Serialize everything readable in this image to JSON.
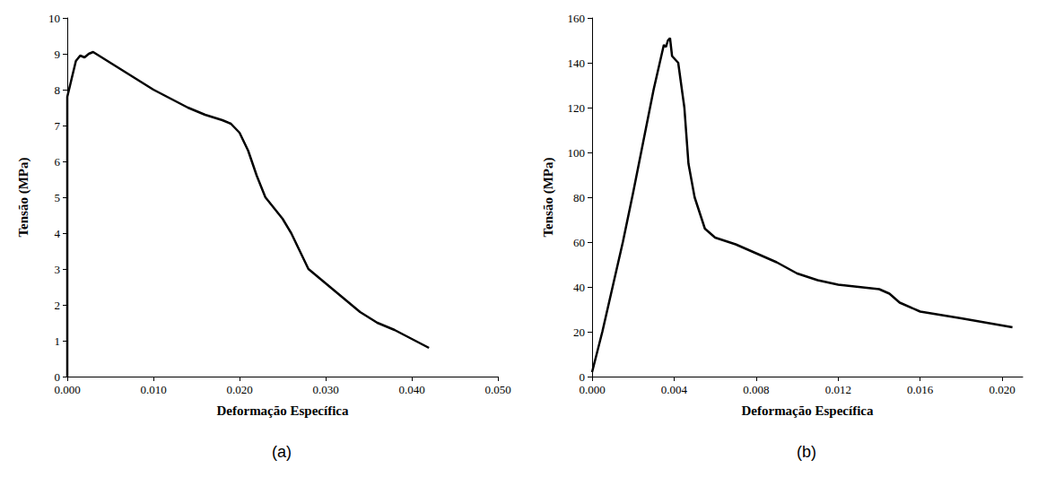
{
  "chart_data": [
    {
      "type": "line",
      "title": "(a)",
      "x_label": "Deformação Específica",
      "y_label": "Tensão (MPa)",
      "color": "#000000",
      "grid": false,
      "x": [
        0,
        0,
        0.0005,
        0.001,
        0.0015,
        0.002,
        0.0025,
        0.003,
        0.004,
        0.006,
        0.008,
        0.01,
        0.012,
        0.014,
        0.016,
        0.018,
        0.019,
        0.02,
        0.021,
        0.022,
        0.023,
        0.025,
        0.026,
        0.027,
        0.028,
        0.03,
        0.032,
        0.034,
        0.036,
        0.038,
        0.04,
        0.042
      ],
      "values": [
        0,
        7.8,
        8.3,
        8.8,
        8.95,
        8.9,
        9.0,
        9.05,
        8.9,
        8.6,
        8.3,
        8.0,
        7.75,
        7.5,
        7.3,
        7.15,
        7.05,
        6.8,
        6.3,
        5.6,
        5.0,
        4.4,
        4.0,
        3.5,
        3.0,
        2.6,
        2.2,
        1.8,
        1.5,
        1.3,
        1.05,
        0.8
      ],
      "xlim": [
        0,
        0.05
      ],
      "xticks": [
        {
          "value": 0,
          "label": "0.000"
        },
        {
          "value": 0.01,
          "label": "0.010"
        },
        {
          "value": 0.02,
          "label": "0.020"
        },
        {
          "value": 0.03,
          "label": "0.030"
        },
        {
          "value": 0.04,
          "label": "0.040"
        },
        {
          "value": 0.05,
          "label": "0.050"
        }
      ],
      "ylim": [
        0,
        10
      ],
      "yticks": [
        0,
        1,
        2,
        3,
        4,
        5,
        6,
        7,
        8,
        9,
        10
      ]
    },
    {
      "type": "line",
      "title": "(b)",
      "x_label": "Deformação Específica",
      "y_label": "Tensão (MPa)",
      "color": "#000000",
      "grid": false,
      "x": [
        0,
        0.0005,
        0.001,
        0.0015,
        0.002,
        0.0025,
        0.003,
        0.0033,
        0.0035,
        0.0036,
        0.0037,
        0.0038,
        0.0039,
        0.0042,
        0.0045,
        0.0047,
        0.005,
        0.0055,
        0.006,
        0.007,
        0.008,
        0.009,
        0.01,
        0.011,
        0.012,
        0.013,
        0.014,
        0.0145,
        0.015,
        0.016,
        0.018,
        0.0205
      ],
      "values": [
        2,
        20,
        40,
        60,
        82,
        105,
        128,
        140,
        148,
        147,
        150,
        151,
        143,
        140,
        120,
        95,
        80,
        66,
        62,
        59,
        55,
        51,
        46,
        43,
        41,
        40,
        39,
        37,
        33,
        29,
        26,
        22
      ],
      "xlim": [
        0,
        0.021
      ],
      "xticks": [
        {
          "value": 0,
          "label": "0.000"
        },
        {
          "value": 0.004,
          "label": "0.004"
        },
        {
          "value": 0.008,
          "label": "0.008"
        },
        {
          "value": 0.012,
          "label": "0.012"
        },
        {
          "value": 0.016,
          "label": "0.016"
        },
        {
          "value": 0.02,
          "label": "0.020"
        }
      ],
      "ylim": [
        0,
        160
      ],
      "yticks": [
        0,
        20,
        40,
        60,
        80,
        100,
        120,
        140,
        160
      ]
    }
  ]
}
